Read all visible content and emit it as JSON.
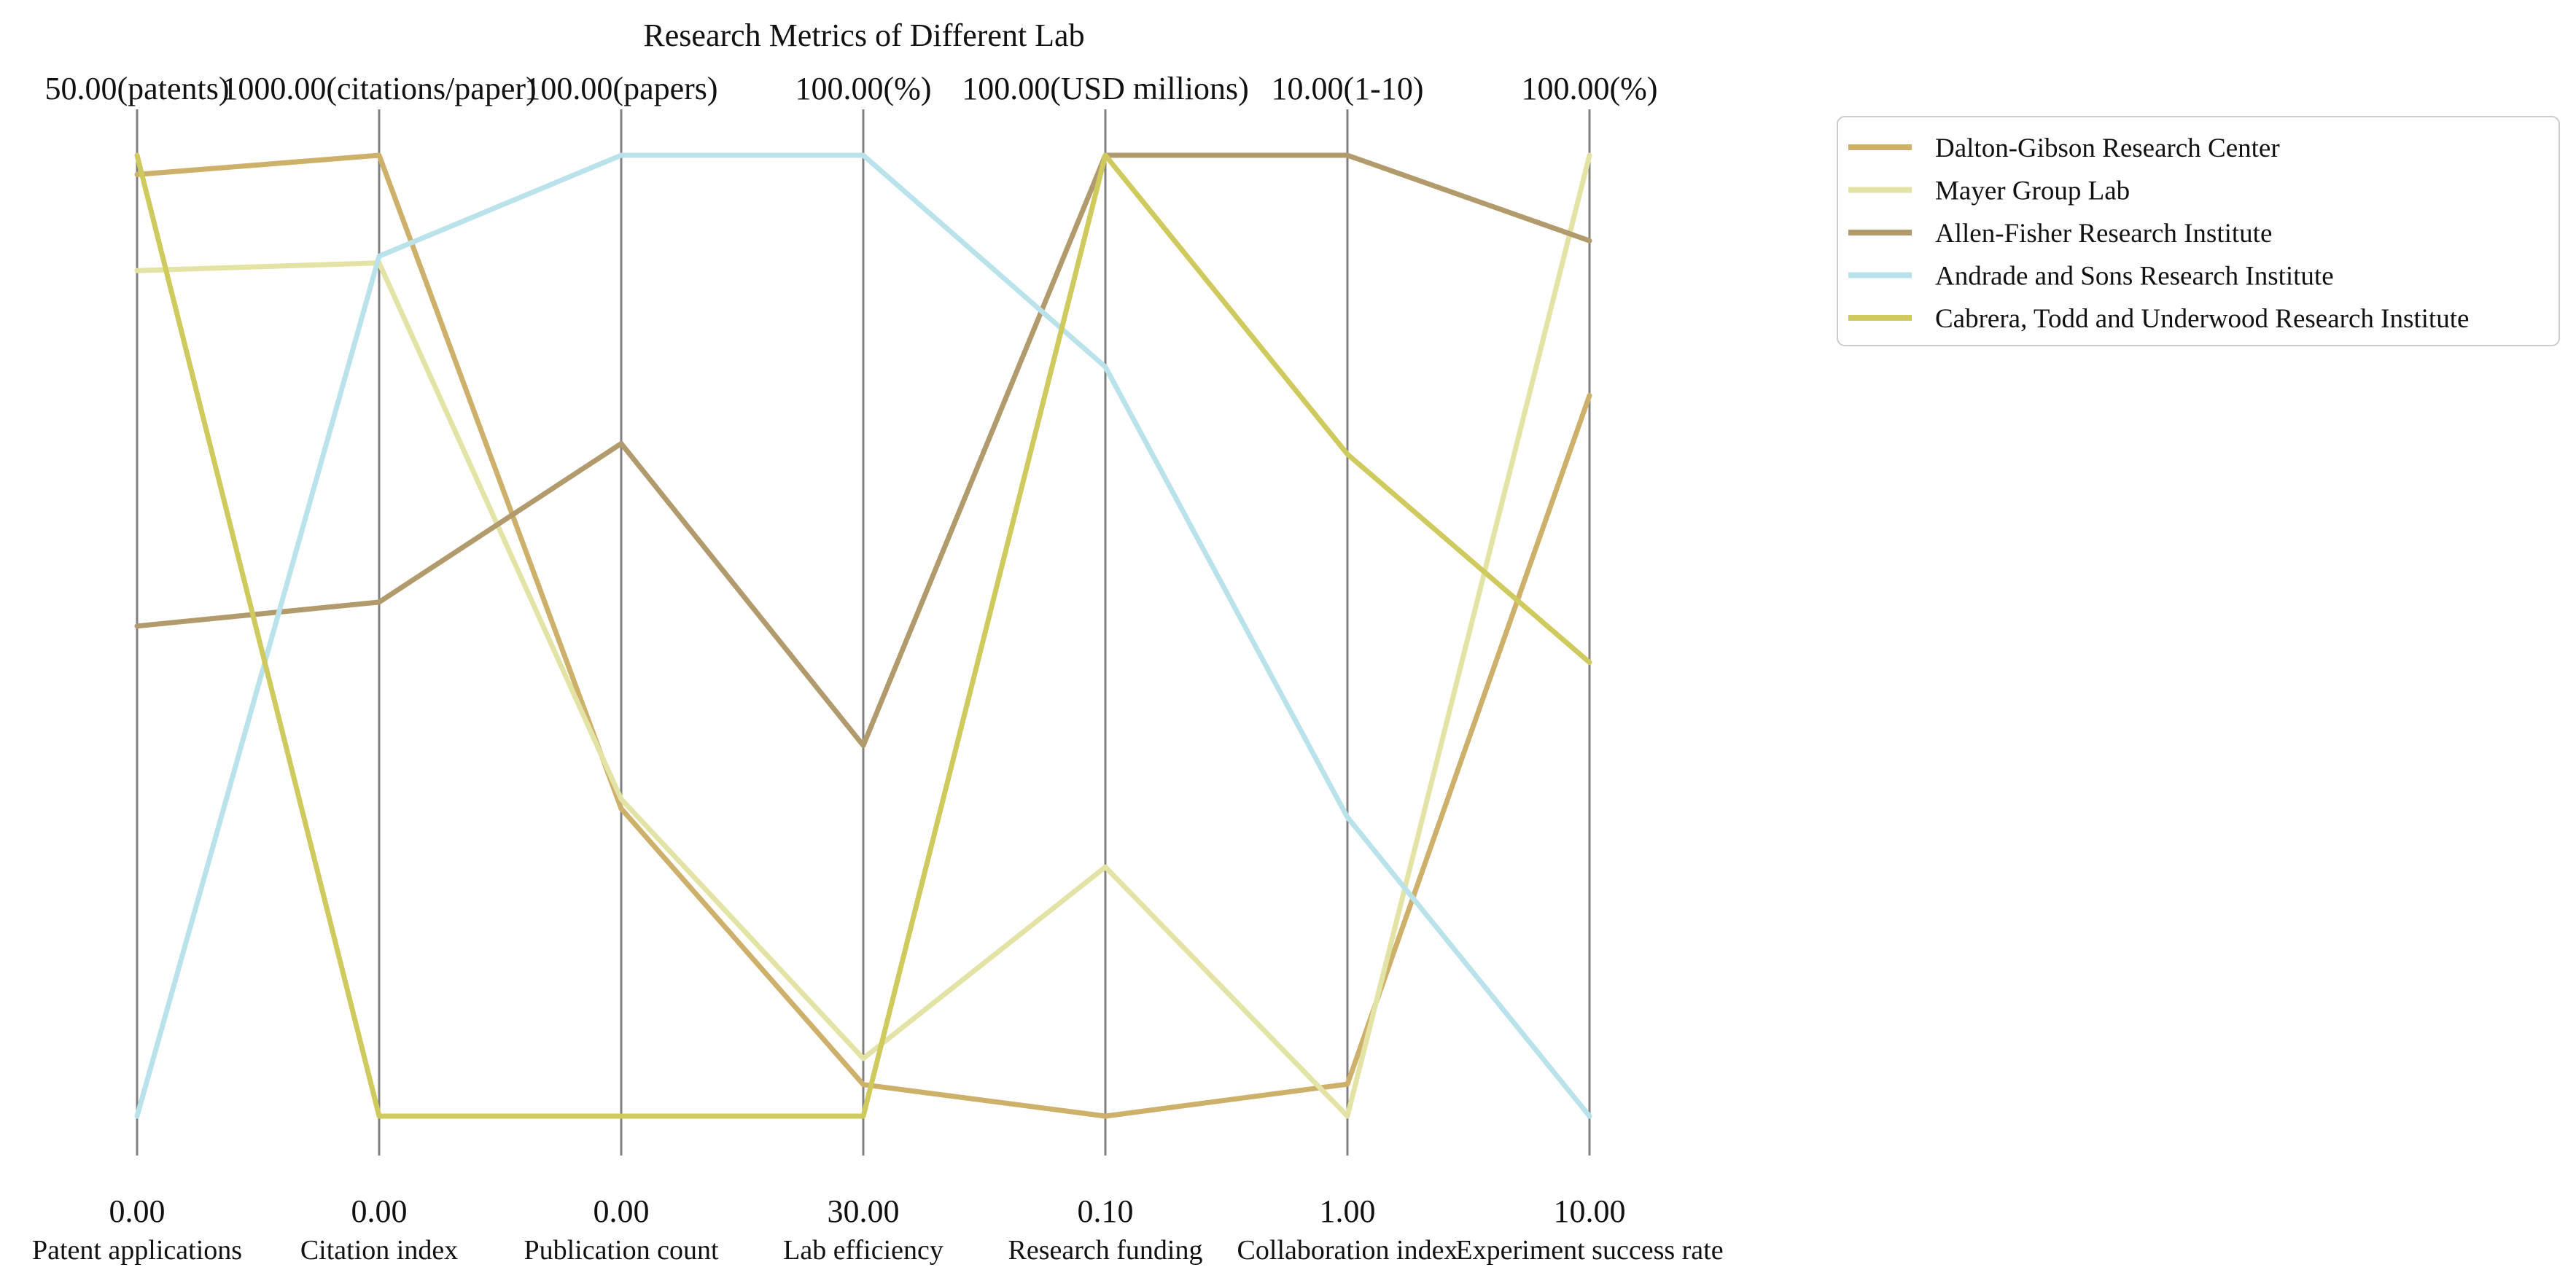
{
  "chart_data": {
    "type": "parallel-coordinates",
    "title": "Research Metrics of Different Lab",
    "axes": [
      {
        "name": "Patent applications",
        "min": 0,
        "max": 50,
        "min_label": "0.00",
        "max_label": "50.00(patents)"
      },
      {
        "name": "Citation index",
        "min": 0,
        "max": 1000,
        "min_label": "0.00",
        "max_label": "1000.00(citations/paper)"
      },
      {
        "name": "Publication count",
        "min": 0,
        "max": 100,
        "min_label": "0.00",
        "max_label": "100.00(papers)"
      },
      {
        "name": "Lab efficiency",
        "min": 30,
        "max": 100,
        "min_label": "30.00",
        "max_label": "100.00(%)"
      },
      {
        "name": "Research funding",
        "min": 0.1,
        "max": 100,
        "min_label": "0.10",
        "max_label": "100.00(USD millions)"
      },
      {
        "name": "Collaboration index",
        "min": 1,
        "max": 10,
        "min_label": "1.00",
        "max_label": "10.00(1-10)"
      },
      {
        "name": "Experiment success rate",
        "min": 10,
        "max": 100,
        "min_label": "10.00",
        "max_label": "100.00(%)"
      }
    ],
    "series": [
      {
        "name": "Dalton-Gibson  Research Center",
        "color": "#cdb06a",
        "values": [
          49,
          1000,
          32,
          32.3,
          0.1,
          1.3,
          77.5
        ]
      },
      {
        "name": "Mayer Group  Lab",
        "color": "#e4e3a6",
        "values": [
          44,
          888,
          33,
          34.2,
          26,
          1.0,
          100
        ]
      },
      {
        "name": "Allen-Fisher  Research Institute",
        "color": "#b19b6c",
        "values": [
          25.5,
          535,
          70,
          57,
          100,
          10,
          92
        ]
      },
      {
        "name": "Andrade and Sons  Research Institute",
        "color": "#b9e2ea",
        "values": [
          0,
          895,
          100,
          100,
          78,
          3.8,
          10
        ]
      },
      {
        "name": "Cabrera, Todd and Underwood  Research Institute",
        "color": "#cfca5e",
        "values": [
          50,
          0,
          0,
          30,
          100,
          7.2,
          52.5
        ]
      }
    ],
    "legend_position": "top-right"
  }
}
